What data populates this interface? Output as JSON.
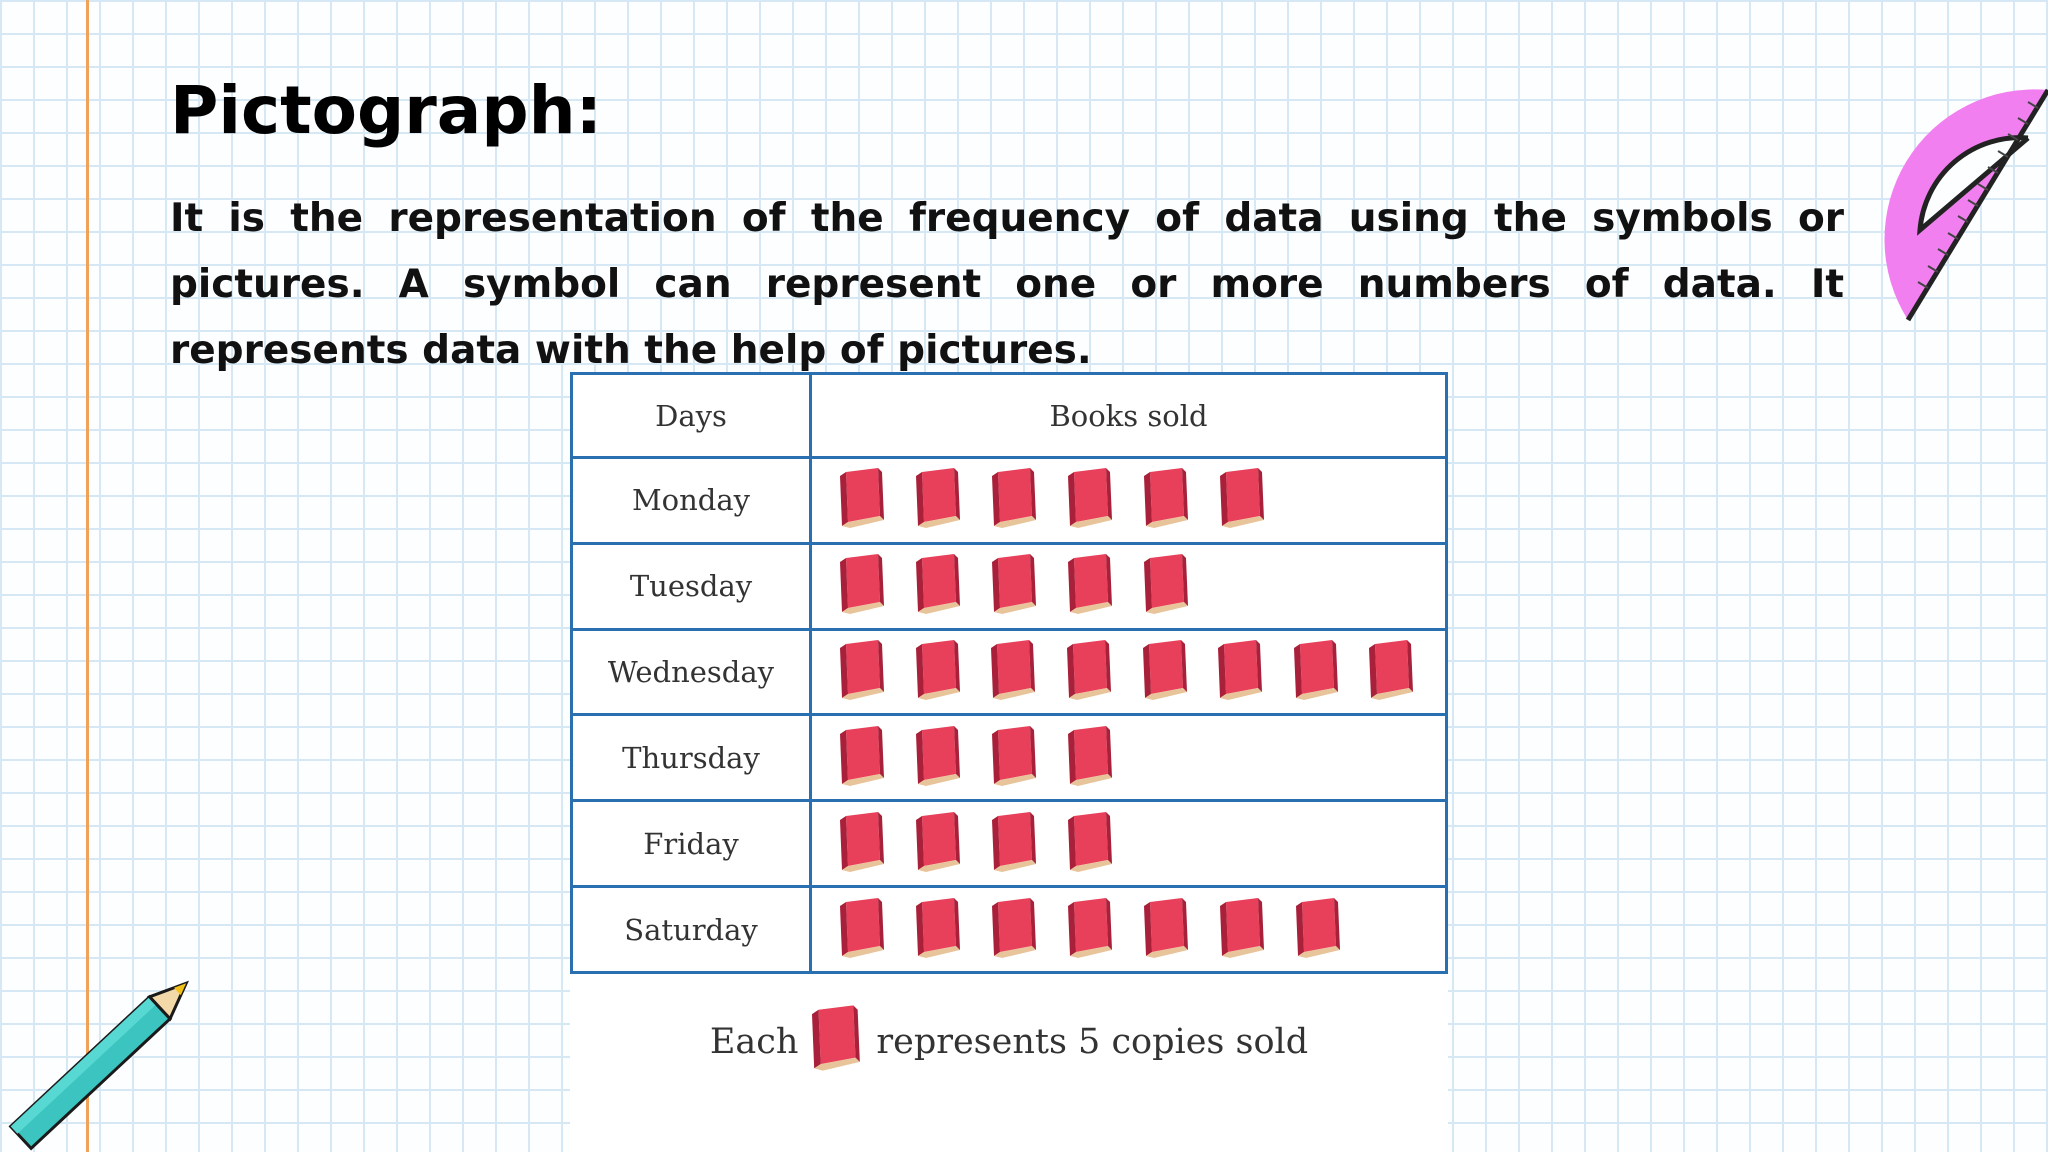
{
  "title": "Pictograph:",
  "description": "It is the representation of the frequency of data using the symbols or pictures. A symbol can represent one or more numbers of data. It represents data with the help of pictures.",
  "colors": {
    "book_cover": "#e8405a",
    "book_spine": "#a8203a",
    "book_pages": "#e8c49a",
    "table_border": "#2a6fb0",
    "margin_line": "#f0a25a"
  },
  "icons": {
    "symbol": "book-icon",
    "decor_top_right": "protractor-icon",
    "decor_bottom_left": "pencil-icon"
  },
  "chart_data": {
    "type": "table",
    "columns": [
      "Days",
      "Books sold"
    ],
    "categories": [
      "Monday",
      "Tuesday",
      "Wednesday",
      "Thursday",
      "Friday",
      "Saturday"
    ],
    "symbol_counts": [
      6,
      5,
      8,
      4,
      4,
      7
    ],
    "key": {
      "prefix": "Each",
      "suffix": "represents 5 copies sold",
      "units_per_symbol": 5
    }
  }
}
